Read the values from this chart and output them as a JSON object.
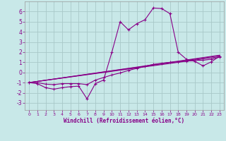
{
  "xlabel": "Windchill (Refroidissement éolien,°C)",
  "bg_color": "#c8e8e8",
  "grid_color": "#a8c8c8",
  "line_color": "#880088",
  "xlim": [
    -0.5,
    23.5
  ],
  "ylim": [
    -3.7,
    7.0
  ],
  "yticks": [
    -3,
    -2,
    -1,
    0,
    1,
    2,
    3,
    4,
    5,
    6
  ],
  "xticks": [
    0,
    1,
    2,
    3,
    4,
    5,
    6,
    7,
    8,
    9,
    10,
    11,
    12,
    13,
    14,
    15,
    16,
    17,
    18,
    19,
    20,
    21,
    22,
    23
  ],
  "series1_x": [
    0,
    1,
    2,
    3,
    4,
    5,
    6,
    7,
    8,
    9,
    10,
    11,
    12,
    13,
    14,
    15,
    16,
    17,
    18,
    19,
    20,
    21,
    22,
    23
  ],
  "series1_y": [
    -1.0,
    -1.1,
    -1.5,
    -1.65,
    -1.5,
    -1.4,
    -1.35,
    -2.6,
    -1.1,
    -0.75,
    2.0,
    5.0,
    4.2,
    4.8,
    5.2,
    6.35,
    6.3,
    5.8,
    2.0,
    1.3,
    1.1,
    0.65,
    1.05,
    1.6
  ],
  "series2_x": [
    0,
    1,
    2,
    3,
    4,
    5,
    6,
    7,
    8,
    9,
    10,
    11,
    12,
    13,
    14,
    15,
    16,
    17,
    18,
    19,
    20,
    21,
    22,
    23
  ],
  "series2_y": [
    -1.0,
    -1.0,
    -1.15,
    -1.2,
    -1.1,
    -1.1,
    -1.1,
    -1.2,
    -0.75,
    -0.5,
    -0.25,
    -0.05,
    0.2,
    0.4,
    0.6,
    0.8,
    0.9,
    1.0,
    1.05,
    1.1,
    1.2,
    1.2,
    1.3,
    1.5
  ],
  "series3_x": [
    0,
    23
  ],
  "series3_y": [
    -1.0,
    1.55
  ],
  "series4_x": [
    0,
    23
  ],
  "series4_y": [
    -1.0,
    1.65
  ],
  "series5_x": [
    0,
    23
  ],
  "series5_y": [
    -1.0,
    1.7
  ]
}
